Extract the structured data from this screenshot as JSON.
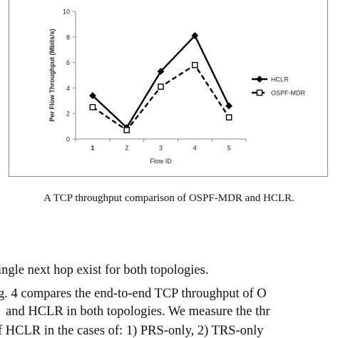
{
  "figure": {
    "caption": "A TCP throughput comparison of OSPF-MDR and HCLR."
  },
  "chart_data": {
    "type": "line",
    "xlabel": "Flow ID",
    "ylabel": "Per Flow Throughput (Mbits/s)",
    "categories": [
      "1",
      "2",
      "3",
      "4",
      "5"
    ],
    "ylim": [
      0,
      10
    ],
    "yticks": [
      0,
      2,
      4,
      6,
      8,
      10
    ],
    "grid": false,
    "legend_position": "right",
    "series": [
      {
        "name": "HCLR",
        "values": [
          3.4,
          0.9,
          5.3,
          8.1,
          2.6
        ],
        "marker": "diamond",
        "line": "solid",
        "color": "#000000"
      },
      {
        "name": "OSPF-MDR",
        "values": [
          2.5,
          0.7,
          4.1,
          5.8,
          1.7
        ],
        "marker": "square-open",
        "line": "dashed",
        "color": "#000000"
      }
    ]
  },
  "text": {
    "line1": "ingle next hop exist for both topologies.",
    "line2": "g. 4 compares the end-to-end TCP throughput of O",
    "line3": "and HCLR in both topologies. We measure the thr",
    "line4": "f HCLR in the cases of: 1) PRS-only, 2) TRS-only"
  }
}
